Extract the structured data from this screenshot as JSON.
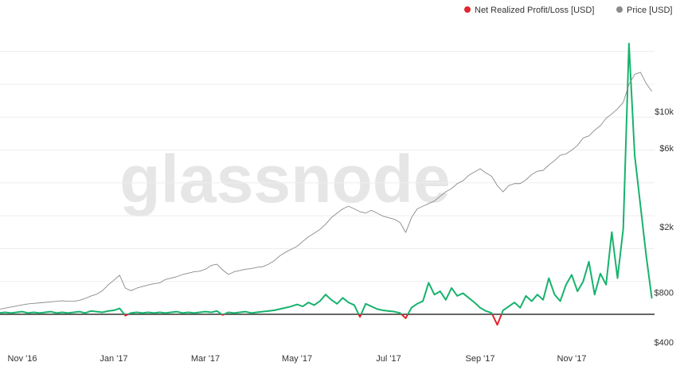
{
  "chart_data": {
    "type": "line",
    "watermark": "glassnode",
    "categories": [
      null,
      null,
      null,
      null,
      "Nov '16",
      null,
      null,
      null,
      null,
      null,
      null,
      null,
      null,
      null,
      null,
      null,
      null,
      null,
      null,
      null,
      "Jan '17",
      null,
      null,
      null,
      null,
      null,
      null,
      null,
      null,
      null,
      null,
      null,
      null,
      null,
      null,
      null,
      "Mar '17",
      null,
      null,
      null,
      null,
      null,
      null,
      null,
      null,
      null,
      null,
      null,
      null,
      null,
      null,
      null,
      "May '17",
      null,
      null,
      null,
      null,
      null,
      null,
      null,
      null,
      null,
      null,
      null,
      null,
      null,
      null,
      null,
      "Jul '17",
      null,
      null,
      null,
      null,
      null,
      null,
      null,
      null,
      null,
      null,
      null,
      null,
      null,
      null,
      null,
      "Sep '17",
      null,
      null,
      null,
      null,
      null,
      null,
      null,
      null,
      null,
      null,
      null,
      null,
      null,
      null,
      null,
      "Nov '17",
      null,
      null,
      null,
      null,
      null,
      null,
      null,
      null,
      null,
      null,
      null,
      null,
      null,
      null
    ],
    "series": [
      {
        "name": "Net Realized Profit/Loss [USD]",
        "color": "#e0262d",
        "positive_color": "#17b26d",
        "values": [
          0.02,
          0.03,
          0.02,
          0.03,
          0.04,
          0.02,
          0.03,
          0.02,
          0.03,
          0.04,
          0.02,
          0.03,
          0.02,
          0.03,
          0.04,
          0.02,
          0.05,
          0.04,
          0.03,
          0.05,
          0.06,
          0.09,
          -0.02,
          0.02,
          0.03,
          0.02,
          0.03,
          0.02,
          0.03,
          0.02,
          0.03,
          0.04,
          0.02,
          0.03,
          0.02,
          0.03,
          0.04,
          0.03,
          0.05,
          -0.01,
          0.03,
          0.02,
          0.03,
          0.04,
          0.02,
          0.03,
          0.04,
          0.05,
          0.06,
          0.08,
          0.1,
          0.12,
          0.15,
          0.12,
          0.18,
          0.14,
          0.2,
          0.3,
          0.22,
          0.16,
          0.25,
          0.18,
          0.14,
          -0.04,
          0.16,
          0.12,
          0.08,
          0.06,
          0.05,
          0.04,
          0.02,
          -0.06,
          0.1,
          0.16,
          0.2,
          0.48,
          0.3,
          0.35,
          0.22,
          0.4,
          0.28,
          0.32,
          0.25,
          0.18,
          0.1,
          0.05,
          0.02,
          -0.16,
          0.06,
          0.12,
          0.18,
          0.1,
          0.28,
          0.2,
          0.3,
          0.22,
          0.55,
          0.3,
          0.2,
          0.45,
          0.6,
          0.35,
          0.5,
          0.8,
          0.3,
          0.62,
          0.45,
          1.25,
          0.55,
          1.3,
          4.12,
          2.42,
          1.66,
          0.9,
          0.24
        ]
      },
      {
        "name": "Price [USD]",
        "color": "#8a8a8a",
        "axis": "y2",
        "values": [
          641,
          650,
          660,
          670,
          680,
          690,
          695,
          700,
          705,
          710,
          715,
          720,
          715,
          716,
          725,
          745,
          770,
          790,
          830,
          900,
          960,
          1030,
          860,
          830,
          860,
          880,
          900,
          915,
          925,
          970,
          990,
          1010,
          1040,
          1060,
          1080,
          1090,
          1120,
          1180,
          1200,
          1110,
          1040,
          1080,
          1100,
          1120,
          1130,
          1150,
          1160,
          1200,
          1260,
          1350,
          1420,
          1480,
          1540,
          1650,
          1760,
          1850,
          1950,
          2100,
          2300,
          2450,
          2600,
          2700,
          2600,
          2500,
          2450,
          2550,
          2450,
          2350,
          2300,
          2250,
          2150,
          1870,
          2300,
          2600,
          2700,
          2800,
          2900,
          3100,
          3300,
          3450,
          3700,
          3850,
          4150,
          4350,
          4550,
          4300,
          4100,
          3600,
          3300,
          3600,
          3700,
          3700,
          3900,
          4200,
          4400,
          4450,
          4800,
          5100,
          5500,
          5600,
          5900,
          6300,
          7000,
          7200,
          7800,
          8300,
          9200,
          9800,
          10500,
          11500,
          14800,
          17000,
          17500,
          15000,
          13400
        ]
      }
    ],
    "ylim": [
      -0.545,
      4.516
    ],
    "yticks": [
      0,
      0.5,
      1,
      1.5,
      2,
      2.5,
      3,
      3.5,
      4
    ],
    "y2lim": [
      362,
      37600
    ],
    "y2_log": true,
    "y2ticks": [
      {
        "value": 10000,
        "label": "$10k"
      },
      {
        "value": 6000,
        "label": "$6k"
      },
      {
        "value": 2000,
        "label": "$2k"
      },
      {
        "value": 800,
        "label": "$800"
      },
      {
        "value": 400,
        "label": "$400"
      }
    ],
    "grid": true,
    "legend": "top-right"
  }
}
